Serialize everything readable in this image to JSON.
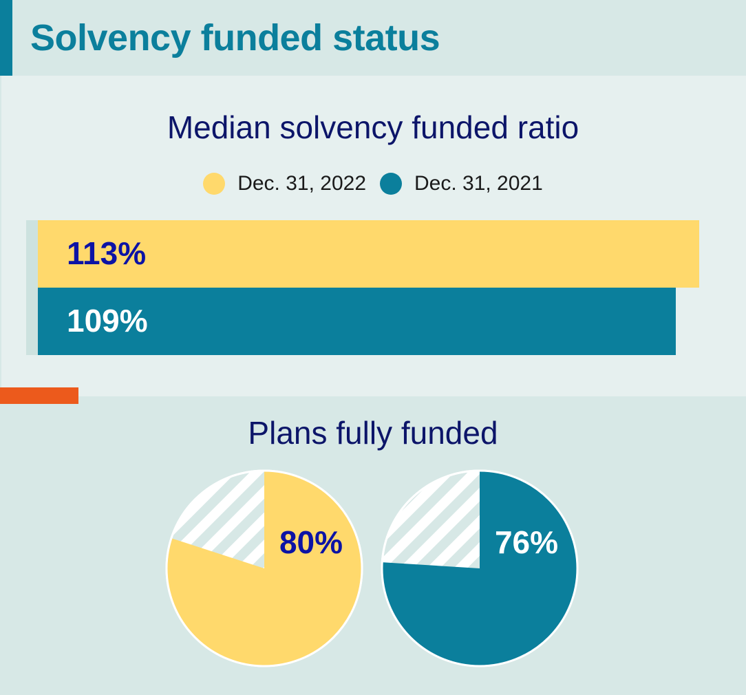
{
  "header": {
    "title": "Solvency funded status"
  },
  "colors": {
    "series_2022": "#ffd96c",
    "series_2021": "#0b7f9c",
    "accent": "#0b7f9c",
    "divider": "#ec5a1c",
    "label_dark": "#0c13a5",
    "label_light": "#ffffff",
    "hatch_bg": "#ffffff",
    "hatch_stripe": "#d7e8e6"
  },
  "chart_data": [
    {
      "type": "bar",
      "title": "Median solvency funded ratio",
      "orientation": "horizontal",
      "legend": [
        "Dec. 31, 2022",
        "Dec. 31, 2021"
      ],
      "legend_position": "top",
      "series": [
        {
          "name": "Dec. 31, 2022",
          "value": 113,
          "label": "113%"
        },
        {
          "name": "Dec. 31, 2021",
          "value": 109,
          "label": "109%"
        }
      ]
    },
    {
      "type": "pie",
      "title": "Plans fully funded",
      "pies": [
        {
          "name": "Dec. 31, 2022",
          "value": 80,
          "label": "80%"
        },
        {
          "name": "Dec. 31, 2021",
          "value": 76,
          "label": "76%"
        }
      ]
    }
  ]
}
